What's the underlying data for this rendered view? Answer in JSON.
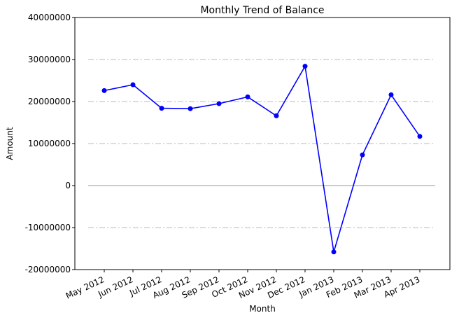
{
  "chart_data": {
    "type": "line",
    "title": "Monthly Trend of Balance",
    "xlabel": "Month",
    "ylabel": "Amount",
    "categories": [
      "May 2012",
      "Jun 2012",
      "Jul 2012",
      "Aug 2012",
      "Sep 2012",
      "Oct 2012",
      "Nov 2012",
      "Dec 2012",
      "Jan 2013",
      "Feb 2013",
      "Mar 2013",
      "Apr 2013"
    ],
    "series": [
      {
        "values": [
          22600000,
          24000000,
          18400000,
          18300000,
          19500000,
          21100000,
          16600000,
          28400000,
          -15800000,
          7300000,
          21600000,
          11700000
        ],
        "color": "#0000ff"
      }
    ],
    "ylim": [
      -20000000,
      40000000
    ],
    "yticks": [
      "-20000000",
      "-10000000",
      "0",
      "10000000",
      "20000000",
      "30000000",
      "40000000"
    ],
    "grid": "horizontal dash-dot",
    "zero_line": true,
    "legend": "none"
  }
}
